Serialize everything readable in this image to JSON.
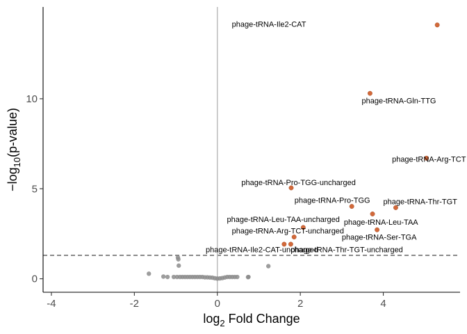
{
  "chart_data": {
    "type": "scatter",
    "title": "",
    "xlabel": {
      "prefix": "log",
      "sub": "2",
      "suffix": " Fold Change"
    },
    "ylabel": {
      "prefix": "−log",
      "sub": "10",
      "suffix": "(p-value)"
    },
    "xlim": [
      -4.2,
      5.85
    ],
    "ylim": [
      -0.75,
      15.1
    ],
    "xticks": [
      -4,
      -2,
      0,
      2,
      4
    ],
    "xtick_labels": [
      "-4",
      "-2",
      "0",
      "2",
      "4"
    ],
    "yticks": [
      0,
      5,
      10
    ],
    "ytick_labels": [
      "0",
      "5",
      "10"
    ],
    "vline_x": 0,
    "hline_y": 1.3,
    "colors": {
      "significant": "#d2693a",
      "nonsignificant": "#8c8c8c",
      "vline": "#bebebe",
      "hline": "#555555"
    },
    "significant_points": [
      {
        "label": "phage-tRNA-Ile2-CAT",
        "x": 5.3,
        "y": 14.1,
        "label_dx": -4.95,
        "label_dy": 0.05
      },
      {
        "label": "phage-tRNA-Gln-TTG",
        "x": 3.68,
        "y": 10.3,
        "label_dx": -0.2,
        "label_dy": -0.4
      },
      {
        "label": "phage-tRNA-Arg-TCT",
        "x": 5.04,
        "y": 6.7,
        "label_dx": -0.83,
        "label_dy": -0.05
      },
      {
        "label": "phage-tRNA-Pro-TGG-uncharged",
        "x": 1.78,
        "y": 5.05,
        "label_dx": -1.2,
        "label_dy": 0.3
      },
      {
        "label": "phage-tRNA-Pro-TGG",
        "x": 3.24,
        "y": 4.02,
        "label_dx": -1.38,
        "label_dy": 0.35
      },
      {
        "label": "phage-tRNA-Thr-TGT",
        "x": 4.3,
        "y": 3.95,
        "label_dx": -0.3,
        "label_dy": 0.35
      },
      {
        "label": "phage-tRNA-Leu-TAA",
        "x": 3.74,
        "y": 3.6,
        "label_dx": -0.69,
        "label_dy": -0.45
      },
      {
        "label": "phage-tRNA-Leu-TAA-uncharged",
        "x": 2.07,
        "y": 2.85,
        "label_dx": -1.84,
        "label_dy": 0.45
      },
      {
        "label": "phage-tRNA-Ser-TGA",
        "x": 3.85,
        "y": 2.72,
        "label_dx": -0.85,
        "label_dy": -0.4
      },
      {
        "label": "phage-tRNA-Arg-TCT-uncharged",
        "x": 1.85,
        "y": 2.32,
        "label_dx": -1.5,
        "label_dy": 0.35
      },
      {
        "label": "phage-tRNA-Ile2-CAT-uncharged",
        "x": 1.61,
        "y": 1.92,
        "label_dx": -1.89,
        "label_dy": -0.3
      },
      {
        "label": "phage-tRNA-Thr-TGT-uncharged",
        "x": 1.77,
        "y": 1.92,
        "label_dx": 0.0,
        "label_dy": -0.3
      }
    ],
    "nonsignificant_points": [
      {
        "x": -1.65,
        "y": 0.28
      },
      {
        "x": -1.3,
        "y": 0.12
      },
      {
        "x": -1.2,
        "y": 0.1
      },
      {
        "x": -0.95,
        "y": 1.18
      },
      {
        "x": -0.94,
        "y": 1.08
      },
      {
        "x": -0.93,
        "y": 0.73
      },
      {
        "x": -1.05,
        "y": 0.1
      },
      {
        "x": -0.97,
        "y": 0.1
      },
      {
        "x": -0.9,
        "y": 0.1
      },
      {
        "x": -0.84,
        "y": 0.1
      },
      {
        "x": -0.78,
        "y": 0.1
      },
      {
        "x": -0.72,
        "y": 0.1
      },
      {
        "x": -0.66,
        "y": 0.1
      },
      {
        "x": -0.6,
        "y": 0.1
      },
      {
        "x": -0.54,
        "y": 0.1
      },
      {
        "x": -0.48,
        "y": 0.1
      },
      {
        "x": -0.42,
        "y": 0.1
      },
      {
        "x": -0.36,
        "y": 0.1
      },
      {
        "x": -0.3,
        "y": 0.08
      },
      {
        "x": -0.24,
        "y": 0.08
      },
      {
        "x": -0.18,
        "y": 0.07
      },
      {
        "x": -0.12,
        "y": 0.06
      },
      {
        "x": -0.06,
        "y": 0.03
      },
      {
        "x": 0.0,
        "y": 0.01
      },
      {
        "x": 0.06,
        "y": 0.02
      },
      {
        "x": 0.12,
        "y": 0.04
      },
      {
        "x": 0.18,
        "y": 0.07
      },
      {
        "x": 0.24,
        "y": 0.1
      },
      {
        "x": 0.3,
        "y": 0.1
      },
      {
        "x": 0.36,
        "y": 0.1
      },
      {
        "x": 0.42,
        "y": 0.1
      },
      {
        "x": 0.48,
        "y": 0.1
      },
      {
        "x": 0.75,
        "y": 0.1
      },
      {
        "x": 0.74,
        "y": 0.09
      },
      {
        "x": 1.23,
        "y": 0.7
      }
    ]
  }
}
